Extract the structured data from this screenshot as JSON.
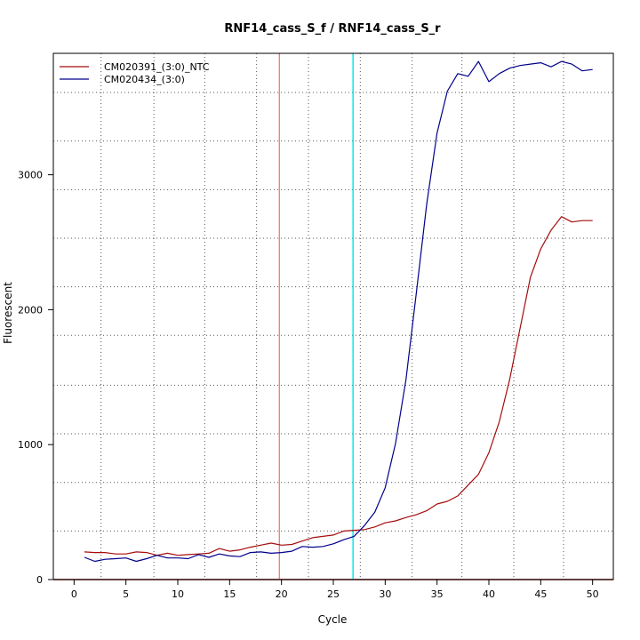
{
  "chart_data": {
    "type": "line",
    "title": "RNF14_cass_S_f / RNF14_cass_S_r",
    "xlabel": "Cycle",
    "ylabel": "Fluorescent",
    "xlim": [
      -2,
      52
    ],
    "ylim": [
      0,
      3900
    ],
    "x_ticks": [
      0,
      5,
      10,
      15,
      20,
      25,
      30,
      35,
      40,
      45,
      50
    ],
    "y_ticks": [
      0,
      1000,
      2000,
      3000
    ],
    "x_grid": [
      2.6,
      7.7,
      12.6,
      17.6,
      22.6,
      27.6,
      32.6,
      37.4,
      42.4,
      47.2
    ],
    "y_grid": [
      0,
      360,
      720,
      1080,
      1440,
      1810,
      2170,
      2530,
      2890,
      3250,
      3610
    ],
    "threshold_lines": [
      {
        "x": 19.8,
        "color": "#f08080"
      },
      {
        "x": 26.9,
        "color": "#00e5e5"
      }
    ],
    "baseline": {
      "y": 0,
      "color": "#8b0000"
    },
    "legend_position": "top-left",
    "series": [
      {
        "name": "CM020391_(3:0)_NTC",
        "color": "#a50d0d",
        "x": [
          1,
          2,
          3,
          4,
          5,
          6,
          7,
          8,
          9,
          10,
          11,
          12,
          13,
          14,
          15,
          16,
          17,
          18,
          19,
          20,
          21,
          22,
          23,
          24,
          25,
          26,
          27,
          28,
          29,
          30,
          31,
          32,
          33,
          34,
          35,
          36,
          37,
          38,
          39,
          40,
          41,
          42,
          43,
          44,
          45,
          46,
          47,
          48,
          49,
          50
        ],
        "values": [
          205,
          200,
          200,
          190,
          190,
          205,
          200,
          180,
          195,
          180,
          185,
          190,
          195,
          230,
          210,
          220,
          240,
          255,
          270,
          255,
          260,
          285,
          310,
          320,
          330,
          360,
          365,
          370,
          390,
          420,
          435,
          460,
          480,
          510,
          560,
          580,
          620,
          700,
          780,
          940,
          1170,
          1480,
          1860,
          2240,
          2450,
          2590,
          2690,
          2650,
          2660,
          2660
        ]
      },
      {
        "name": "CM020434_(3:0)",
        "color": "#00008b",
        "x": [
          1,
          2,
          3,
          4,
          5,
          6,
          7,
          8,
          9,
          10,
          11,
          12,
          13,
          14,
          15,
          16,
          17,
          18,
          19,
          20,
          21,
          22,
          23,
          24,
          25,
          26,
          27,
          28,
          29,
          30,
          31,
          32,
          33,
          34,
          35,
          36,
          37,
          38,
          39,
          40,
          41,
          42,
          43,
          44,
          45,
          46,
          47,
          48,
          49,
          50
        ],
        "values": [
          165,
          135,
          150,
          155,
          160,
          135,
          155,
          180,
          160,
          160,
          155,
          185,
          165,
          190,
          175,
          170,
          200,
          205,
          195,
          200,
          210,
          245,
          240,
          245,
          265,
          295,
          320,
          400,
          500,
          680,
          1010,
          1480,
          2120,
          2780,
          3310,
          3620,
          3750,
          3730,
          3840,
          3690,
          3750,
          3790,
          3810,
          3820,
          3830,
          3800,
          3840,
          3820,
          3770,
          3780
        ]
      }
    ]
  }
}
